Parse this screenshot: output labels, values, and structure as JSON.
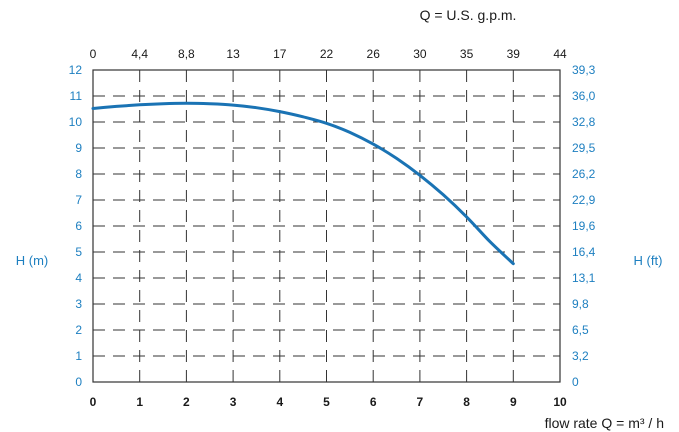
{
  "chart_data": {
    "type": "line",
    "title": "",
    "x_bottom": {
      "label": "flow rate  Q = m³ / h",
      "ticks": [
        "0",
        "1",
        "2",
        "3",
        "4",
        "5",
        "6",
        "7",
        "8",
        "9",
        "10"
      ],
      "range": [
        0,
        10
      ]
    },
    "x_top": {
      "label": "Q = U.S. g.p.m.",
      "ticks": [
        "0",
        "4,4",
        "8,8",
        "13",
        "17",
        "22",
        "26",
        "30",
        "35",
        "39",
        "44"
      ]
    },
    "y_left": {
      "label": "H (m)",
      "ticks": [
        "0",
        "1",
        "2",
        "3",
        "4",
        "5",
        "6",
        "7",
        "8",
        "9",
        "10",
        "11",
        "12"
      ],
      "range": [
        0,
        12
      ]
    },
    "y_right": {
      "label": "H (ft)",
      "ticks": [
        "0",
        "3,2",
        "6,5",
        "9,8",
        "13,1",
        "16,4",
        "19,6",
        "22,9",
        "26,2",
        "29,5",
        "32,8",
        "36,0",
        "39,3"
      ]
    },
    "grid": true,
    "series": [
      {
        "color": "#1a73b4",
        "x": [
          0,
          0.5,
          1,
          1.5,
          2,
          2.5,
          3,
          3.5,
          4,
          4.5,
          5,
          5.5,
          6,
          6.5,
          7,
          7.5,
          8,
          8.5,
          9
        ],
        "y": [
          10.52,
          10.6,
          10.66,
          10.7,
          10.72,
          10.7,
          10.65,
          10.55,
          10.4,
          10.2,
          9.95,
          9.6,
          9.15,
          8.6,
          7.95,
          7.2,
          6.35,
          5.4,
          4.55
        ]
      }
    ]
  }
}
